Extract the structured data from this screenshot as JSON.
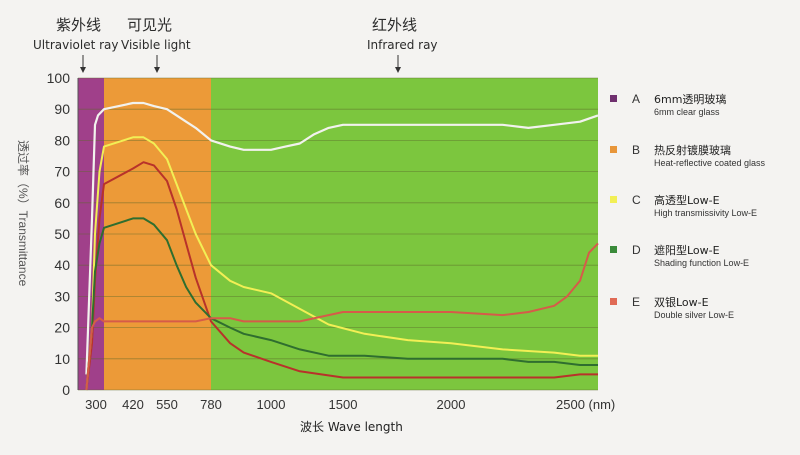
{
  "header": {
    "uv_cn": "紫外线",
    "uv_en": "Ultraviolet ray",
    "visible_cn": "可见光",
    "visible_en": "Visible light",
    "ir_cn": "红外线",
    "ir_en": "Infrared ray"
  },
  "legend": [
    {
      "letter": "A",
      "cn": "6mm透明玻璃",
      "en": "6mm clear glass",
      "color": "#6f2f6e"
    },
    {
      "letter": "B",
      "cn": "热反射镀膜玻璃",
      "en": "Heat-reflective coated glass",
      "color": "#e8963a"
    },
    {
      "letter": "C",
      "cn": "高透型Low-E",
      "en": "High transmissivity Low-E",
      "color": "#f2ef55"
    },
    {
      "letter": "D",
      "cn": "遮阳型Low-E",
      "en": "Shading function Low-E",
      "color": "#3a8a3a"
    },
    {
      "letter": "E",
      "cn": "双银Low-E",
      "en": "Double silver Low-E",
      "color": "#e06a55"
    }
  ],
  "chart_data": {
    "type": "line",
    "xlabel": "波长 Wave length",
    "ylabel": "透过率（%）Transmittance",
    "x_ticks": [
      "300",
      "420",
      "550",
      "780",
      "1000",
      "1500",
      "2000",
      "2500 (nm)"
    ],
    "y_ticks": [
      "0",
      "10",
      "20",
      "30",
      "40",
      "50",
      "60",
      "70",
      "80",
      "90",
      "100"
    ],
    "ylim": [
      0,
      100
    ],
    "bands": [
      {
        "name": "Ultraviolet ray",
        "x": [
          250,
          380
        ],
        "color": "#a0408a"
      },
      {
        "name": "Visible light",
        "x": [
          380,
          780
        ],
        "color": "#ec9a38"
      },
      {
        "name": "Infrared ray",
        "x": [
          780,
          2600
        ],
        "color": "#7cc63e"
      }
    ],
    "series": [
      {
        "name": "6mm clear glass",
        "color": "#f2f2ee",
        "x": [
          280,
          300,
          320,
          340,
          380,
          420,
          460,
          500,
          550,
          600,
          650,
          700,
          780,
          850,
          900,
          1000,
          1100,
          1200,
          1300,
          1400,
          1500,
          1600,
          1800,
          2000,
          2200,
          2300,
          2400,
          2500,
          2600
        ],
        "y": [
          5,
          55,
          85,
          88,
          90,
          92,
          92,
          91,
          90,
          88,
          86,
          84,
          80,
          78,
          77,
          77,
          78,
          79,
          82,
          84,
          85,
          85,
          85,
          85,
          85,
          84,
          85,
          86,
          88
        ]
      },
      {
        "name": "Heat-reflective coated glass",
        "color": "#b8322a",
        "x": [
          280,
          300,
          320,
          350,
          380,
          420,
          460,
          500,
          550,
          600,
          650,
          700,
          780,
          850,
          900,
          1000,
          1200,
          1500,
          1800,
          2000,
          2200,
          2400,
          2500,
          2600
        ],
        "y": [
          0,
          15,
          35,
          55,
          66,
          71,
          73,
          72,
          67,
          58,
          47,
          36,
          22,
          15,
          12,
          9,
          6,
          4,
          4,
          4,
          4,
          4,
          5,
          5
        ]
      },
      {
        "name": "High transmissivity Low-E",
        "color": "#f2ef55",
        "x": [
          280,
          300,
          320,
          350,
          380,
          420,
          460,
          500,
          550,
          600,
          650,
          700,
          780,
          850,
          900,
          1000,
          1200,
          1400,
          1600,
          1800,
          2000,
          2200,
          2400,
          2500,
          2600
        ],
        "y": [
          0,
          20,
          50,
          70,
          78,
          81,
          81,
          79,
          74,
          66,
          58,
          50,
          40,
          35,
          33,
          31,
          26,
          21,
          18,
          16,
          15,
          13,
          12,
          11,
          11
        ]
      },
      {
        "name": "Shading function Low-E",
        "color": "#2f6e2f",
        "x": [
          280,
          300,
          320,
          350,
          380,
          420,
          460,
          500,
          550,
          600,
          650,
          700,
          780,
          850,
          900,
          1000,
          1200,
          1400,
          1600,
          1800,
          2000,
          2200,
          2300,
          2400,
          2500,
          2600
        ],
        "y": [
          0,
          20,
          38,
          47,
          52,
          55,
          55,
          53,
          48,
          40,
          33,
          28,
          23,
          20,
          18,
          16,
          13,
          11,
          11,
          10,
          10,
          10,
          9,
          9,
          8,
          8
        ]
      },
      {
        "name": "Double silver Low-E",
        "color": "#d65b49",
        "x": [
          280,
          300,
          320,
          350,
          380,
          420,
          460,
          500,
          550,
          600,
          650,
          700,
          780,
          850,
          900,
          1000,
          1200,
          1400,
          1500,
          1600,
          1800,
          2000,
          2200,
          2300,
          2400,
          2450,
          2500,
          2550,
          2600
        ],
        "y": [
          0,
          20,
          22,
          23,
          22,
          22,
          22,
          22,
          22,
          22,
          22,
          22,
          23,
          23,
          22,
          22,
          22,
          24,
          25,
          25,
          25,
          25,
          24,
          25,
          27,
          30,
          35,
          44,
          47
        ]
      }
    ]
  }
}
